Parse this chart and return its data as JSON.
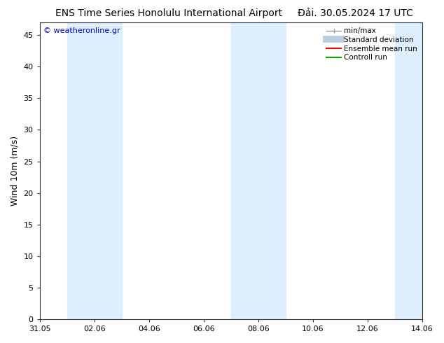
{
  "title_left": "ENS Time Series Honolulu International Airport",
  "title_right": "Đải. 30.05.2024 17 UTC",
  "ylabel": "Wind 10m (m/s)",
  "watermark": "© weatheronline.gr",
  "watermark_color": "#0000cc",
  "ylim": [
    0,
    47
  ],
  "yticks": [
    0,
    5,
    10,
    15,
    20,
    25,
    30,
    35,
    40,
    45
  ],
  "xlabel_ticks": [
    "31.05",
    "02.06",
    "04.06",
    "06.06",
    "08.06",
    "10.06",
    "12.06",
    "14.06"
  ],
  "x_tick_positions": [
    0,
    2,
    4,
    6,
    8,
    10,
    12,
    14
  ],
  "x_start": 0,
  "x_end": 14,
  "bg_color": "#ffffff",
  "plot_bg_color": "#ffffff",
  "shade_bands": [
    {
      "x_start": 1.0,
      "x_end": 3.0,
      "color": "#ddeeff"
    },
    {
      "x_start": 7.0,
      "x_end": 9.0,
      "color": "#ddeeff"
    },
    {
      "x_start": 13.0,
      "x_end": 14.0,
      "color": "#ddeeff"
    }
  ],
  "legend_items": [
    {
      "label": "min/max",
      "color": "#999999",
      "lw": 1.0,
      "style": "errorbar"
    },
    {
      "label": "Standard deviation",
      "color": "#bbccdd",
      "lw": 7,
      "style": "bar"
    },
    {
      "label": "Ensemble mean run",
      "color": "#ff0000",
      "lw": 1.5,
      "style": "line"
    },
    {
      "label": "Controll run",
      "color": "#00aa00",
      "lw": 1.5,
      "style": "line"
    }
  ],
  "title_fontsize": 10,
  "tick_fontsize": 8,
  "ylabel_fontsize": 9,
  "watermark_fontsize": 8,
  "legend_fontsize": 7.5
}
